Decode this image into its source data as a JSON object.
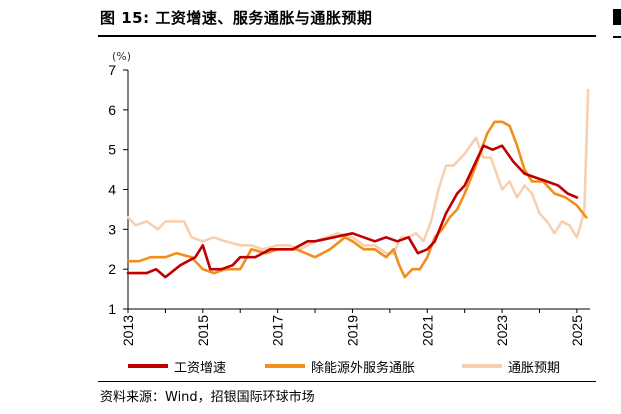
{
  "title": "图 15: 工资增速、服务通胀与通胀预期",
  "source": "资料来源：Wind，招银国际环球市场",
  "chart_data": {
    "type": "line",
    "unit_label": "(%)",
    "ylim": [
      1,
      7
    ],
    "yticks": [
      1,
      2,
      3,
      4,
      5,
      6,
      7
    ],
    "xlim": [
      2013,
      2025.35
    ],
    "xticks": [
      "2013",
      "2015",
      "2017",
      "2019",
      "2021",
      "2023",
      "2025"
    ],
    "grid": false,
    "legend_position": "bottom",
    "series": [
      {
        "name": "工资增速",
        "color": "#c00000",
        "points": [
          [
            2013.0,
            1.9
          ],
          [
            2013.5,
            1.9
          ],
          [
            2013.75,
            2.0
          ],
          [
            2014.0,
            1.8
          ],
          [
            2014.4,
            2.1
          ],
          [
            2014.8,
            2.3
          ],
          [
            2015.0,
            2.6
          ],
          [
            2015.2,
            2.0
          ],
          [
            2015.5,
            2.0
          ],
          [
            2015.8,
            2.1
          ],
          [
            2016.0,
            2.3
          ],
          [
            2016.4,
            2.3
          ],
          [
            2016.8,
            2.5
          ],
          [
            2017.0,
            2.5
          ],
          [
            2017.4,
            2.5
          ],
          [
            2017.8,
            2.7
          ],
          [
            2018.0,
            2.7
          ],
          [
            2018.5,
            2.8
          ],
          [
            2019.0,
            2.9
          ],
          [
            2019.3,
            2.8
          ],
          [
            2019.6,
            2.7
          ],
          [
            2019.9,
            2.8
          ],
          [
            2020.2,
            2.7
          ],
          [
            2020.5,
            2.8
          ],
          [
            2020.75,
            2.4
          ],
          [
            2021.0,
            2.5
          ],
          [
            2021.2,
            2.7
          ],
          [
            2021.5,
            3.4
          ],
          [
            2021.8,
            3.9
          ],
          [
            2022.0,
            4.1
          ],
          [
            2022.3,
            4.7
          ],
          [
            2022.5,
            5.1
          ],
          [
            2022.75,
            5.0
          ],
          [
            2023.0,
            5.1
          ],
          [
            2023.3,
            4.7
          ],
          [
            2023.6,
            4.4
          ],
          [
            2023.9,
            4.3
          ],
          [
            2024.2,
            4.2
          ],
          [
            2024.5,
            4.1
          ],
          [
            2024.75,
            3.9
          ],
          [
            2025.0,
            3.8
          ]
        ]
      },
      {
        "name": "除能源外服务通胀",
        "color": "#f28e1c",
        "points": [
          [
            2013.0,
            2.2
          ],
          [
            2013.3,
            2.2
          ],
          [
            2013.6,
            2.3
          ],
          [
            2014.0,
            2.3
          ],
          [
            2014.3,
            2.4
          ],
          [
            2014.7,
            2.3
          ],
          [
            2015.0,
            2.0
          ],
          [
            2015.3,
            1.9
          ],
          [
            2015.6,
            2.0
          ],
          [
            2016.0,
            2.0
          ],
          [
            2016.3,
            2.5
          ],
          [
            2016.7,
            2.4
          ],
          [
            2017.0,
            2.5
          ],
          [
            2017.5,
            2.5
          ],
          [
            2018.0,
            2.3
          ],
          [
            2018.4,
            2.5
          ],
          [
            2018.8,
            2.8
          ],
          [
            2019.0,
            2.7
          ],
          [
            2019.3,
            2.5
          ],
          [
            2019.6,
            2.5
          ],
          [
            2019.9,
            2.3
          ],
          [
            2020.1,
            2.5
          ],
          [
            2020.25,
            2.1
          ],
          [
            2020.4,
            1.8
          ],
          [
            2020.6,
            2.0
          ],
          [
            2020.8,
            2.0
          ],
          [
            2021.0,
            2.3
          ],
          [
            2021.2,
            2.8
          ],
          [
            2021.4,
            3.0
          ],
          [
            2021.6,
            3.3
          ],
          [
            2021.8,
            3.5
          ],
          [
            2022.0,
            3.9
          ],
          [
            2022.3,
            4.6
          ],
          [
            2022.6,
            5.4
          ],
          [
            2022.8,
            5.7
          ],
          [
            2023.0,
            5.7
          ],
          [
            2023.2,
            5.6
          ],
          [
            2023.4,
            5.1
          ],
          [
            2023.6,
            4.5
          ],
          [
            2023.8,
            4.2
          ],
          [
            2024.1,
            4.2
          ],
          [
            2024.4,
            3.9
          ],
          [
            2024.7,
            3.8
          ],
          [
            2025.0,
            3.6
          ],
          [
            2025.25,
            3.3
          ]
        ]
      },
      {
        "name": "通胀预期",
        "color": "#f7d0b0",
        "points": [
          [
            2013.0,
            3.3
          ],
          [
            2013.2,
            3.1
          ],
          [
            2013.5,
            3.2
          ],
          [
            2013.8,
            3.0
          ],
          [
            2014.0,
            3.2
          ],
          [
            2014.3,
            3.2
          ],
          [
            2014.5,
            3.2
          ],
          [
            2014.7,
            2.8
          ],
          [
            2015.0,
            2.7
          ],
          [
            2015.3,
            2.8
          ],
          [
            2015.6,
            2.7
          ],
          [
            2016.0,
            2.6
          ],
          [
            2016.3,
            2.6
          ],
          [
            2016.6,
            2.5
          ],
          [
            2017.0,
            2.6
          ],
          [
            2017.3,
            2.6
          ],
          [
            2017.6,
            2.5
          ],
          [
            2018.0,
            2.7
          ],
          [
            2018.3,
            2.8
          ],
          [
            2018.6,
            2.9
          ],
          [
            2019.0,
            2.8
          ],
          [
            2019.3,
            2.6
          ],
          [
            2019.6,
            2.6
          ],
          [
            2019.9,
            2.4
          ],
          [
            2020.1,
            2.4
          ],
          [
            2020.3,
            2.8
          ],
          [
            2020.5,
            2.8
          ],
          [
            2020.7,
            2.9
          ],
          [
            2020.9,
            2.7
          ],
          [
            2021.1,
            3.2
          ],
          [
            2021.3,
            4.0
          ],
          [
            2021.5,
            4.6
          ],
          [
            2021.7,
            4.6
          ],
          [
            2022.0,
            4.9
          ],
          [
            2022.3,
            5.3
          ],
          [
            2022.5,
            4.8
          ],
          [
            2022.7,
            4.8
          ],
          [
            2023.0,
            4.0
          ],
          [
            2023.2,
            4.2
          ],
          [
            2023.4,
            3.8
          ],
          [
            2023.6,
            4.1
          ],
          [
            2023.8,
            3.9
          ],
          [
            2024.0,
            3.4
          ],
          [
            2024.2,
            3.2
          ],
          [
            2024.4,
            2.9
          ],
          [
            2024.6,
            3.2
          ],
          [
            2024.8,
            3.1
          ],
          [
            2025.0,
            2.8
          ],
          [
            2025.1,
            3.1
          ],
          [
            2025.2,
            3.5
          ],
          [
            2025.3,
            6.5
          ]
        ]
      }
    ]
  }
}
